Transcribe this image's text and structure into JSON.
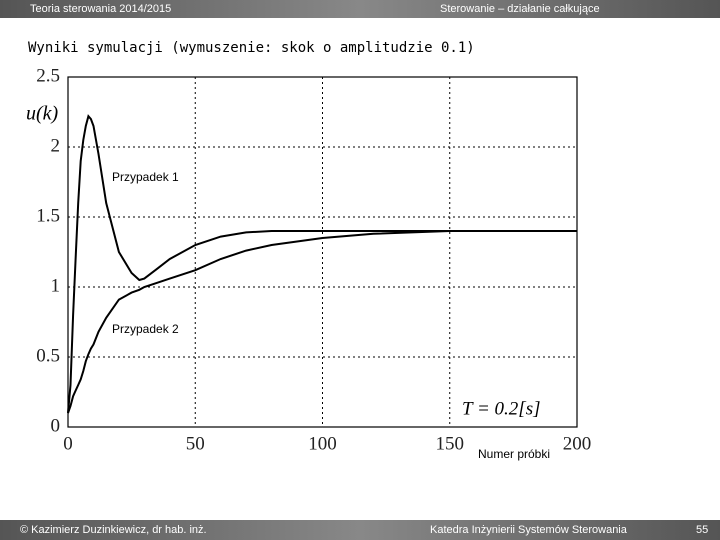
{
  "header": {
    "left": "Teoria sterowania 2014/2015",
    "right": "Sterowanie – działanie całkujące"
  },
  "footer": {
    "left": "© Kazimierz Duzinkiewicz, dr hab. inż.",
    "center": "Katedra Inżynierii Systemów Sterowania",
    "page": "55"
  },
  "chart_data": {
    "type": "line",
    "title": "Wyniki symulacji (wymuszenie: skok o amplitudzie 0.1)",
    "y_label": "u(k)",
    "x_label": "Numer próbki",
    "annotation": "T = 0.2[s]",
    "x": [
      0,
      1,
      2,
      3,
      4,
      5,
      6,
      7,
      8,
      9,
      10,
      12,
      15,
      20,
      25,
      28,
      30,
      35,
      40,
      50,
      60,
      70,
      80,
      100,
      120,
      150,
      200
    ],
    "series": [
      {
        "name": "Przypadek 1",
        "color": "#000000",
        "values": [
          0.1,
          0.3,
          0.8,
          1.2,
          1.6,
          1.9,
          2.05,
          2.15,
          2.22,
          2.2,
          2.15,
          1.95,
          1.6,
          1.25,
          1.1,
          1.05,
          1.06,
          1.13,
          1.2,
          1.3,
          1.36,
          1.39,
          1.4,
          1.4,
          1.4,
          1.4,
          1.4
        ]
      },
      {
        "name": "Przypadek 2",
        "color": "#000000",
        "values": [
          0.1,
          0.15,
          0.22,
          0.26,
          0.3,
          0.34,
          0.4,
          0.47,
          0.52,
          0.56,
          0.59,
          0.68,
          0.78,
          0.91,
          0.96,
          0.98,
          1.0,
          1.03,
          1.06,
          1.12,
          1.2,
          1.26,
          1.3,
          1.35,
          1.38,
          1.4,
          1.4
        ]
      }
    ],
    "xlim": [
      0,
      200
    ],
    "xticks": [
      0,
      50,
      100,
      150,
      200
    ],
    "ylim": [
      0,
      2.5
    ],
    "yticks": [
      0,
      0.5,
      1,
      1.5,
      2,
      2.5
    ],
    "grid": true
  }
}
